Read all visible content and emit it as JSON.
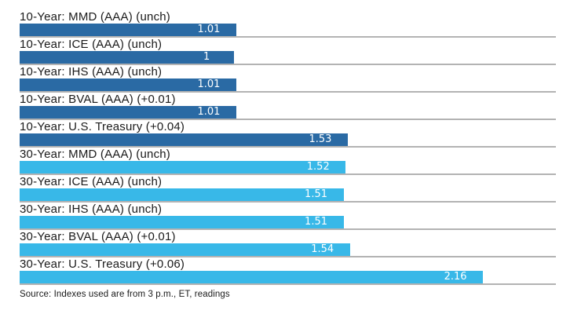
{
  "source_note": "Source: Indexes used are from 3 p.m., ET, readings",
  "colors": {
    "ten_year_bar": "#2a6aa4",
    "thirty_year_bar": "#38b8e8",
    "baseline": "#b3b3b3",
    "value_text": "#ffffff",
    "label_text": "#1a1a1a",
    "background": "#ffffff"
  },
  "chart_data": {
    "type": "bar",
    "orientation": "horizontal",
    "title": "",
    "xlabel": "",
    "ylabel": "",
    "xlim": [
      0,
      2.5
    ],
    "grid": false,
    "legend_position": "none",
    "value_label_position": "inside-end",
    "categories": [
      "10-Year: MMD (AAA) (unch)",
      "10-Year: ICE (AAA) (unch)",
      "10-Year: IHS (AAA) (unch)",
      "10-Year: BVAL (AAA) (+0.01)",
      "10-Year: U.S. Treasury (+0.04)",
      "30-Year: MMD (AAA) (unch)",
      "30-Year: ICE (AAA) (unch)",
      "30-Year: IHS (AAA) (unch)",
      "30-Year: BVAL (AAA) (+0.01)",
      "30-Year: U.S. Treasury (+0.06)"
    ],
    "values": [
      1.01,
      1.0,
      1.01,
      1.01,
      1.53,
      1.52,
      1.51,
      1.51,
      1.54,
      2.16
    ],
    "series": [
      {
        "name": "10-Year",
        "color": "#2a6aa4",
        "items": [
          {
            "label": "10-Year: MMD (AAA) (unch)",
            "value": 1.01,
            "display": "1.01"
          },
          {
            "label": "10-Year: ICE (AAA) (unch)",
            "value": 1.0,
            "display": "1"
          },
          {
            "label": "10-Year: IHS (AAA) (unch)",
            "value": 1.01,
            "display": "1.01"
          },
          {
            "label": "10-Year: BVAL (AAA) (+0.01)",
            "value": 1.01,
            "display": "1.01"
          },
          {
            "label": "10-Year: U.S. Treasury (+0.04)",
            "value": 1.53,
            "display": "1.53"
          }
        ]
      },
      {
        "name": "30-Year",
        "color": "#38b8e8",
        "items": [
          {
            "label": "30-Year: MMD (AAA) (unch)",
            "value": 1.52,
            "display": "1.52"
          },
          {
            "label": "30-Year: ICE (AAA) (unch)",
            "value": 1.51,
            "display": "1.51"
          },
          {
            "label": "30-Year: IHS (AAA) (unch)",
            "value": 1.51,
            "display": "1.51"
          },
          {
            "label": "30-Year: BVAL (AAA) (+0.01)",
            "value": 1.54,
            "display": "1.54"
          },
          {
            "label": "30-Year: U.S. Treasury (+0.06)",
            "value": 2.16,
            "display": "2.16"
          }
        ]
      }
    ]
  }
}
